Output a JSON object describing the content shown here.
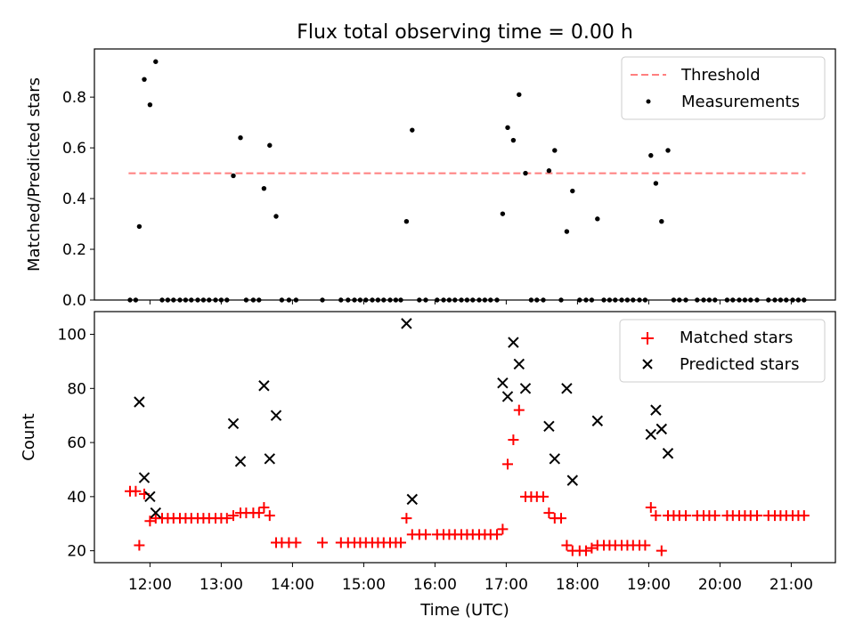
{
  "title": "Flux total observing time = 0.00 h",
  "colors": {
    "threshold": "#ff7f7f",
    "measurement": "#000000",
    "matched": "#ff0000",
    "predicted": "#000000"
  },
  "chart_data": [
    {
      "type": "scatter",
      "ylabel": "Matched/Predicted stars",
      "xlim": [
        11.22,
        21.62
      ],
      "ylim": [
        0,
        0.99
      ],
      "yticks": [
        0.0,
        0.2,
        0.4,
        0.6,
        0.8
      ],
      "ytick_labels": [
        "0.0",
        "0.2",
        "0.4",
        "0.6",
        "0.8"
      ],
      "legend": {
        "position": "upper right",
        "entries": [
          "Threshold",
          "Measurements"
        ]
      },
      "threshold": {
        "name": "Threshold",
        "y": 0.5,
        "x": [
          11.7,
          21.2
        ]
      },
      "series": [
        {
          "name": "Measurements",
          "marker": "dot",
          "points": [
            [
              11.72,
              0
            ],
            [
              11.8,
              0
            ],
            [
              11.85,
              0.29
            ],
            [
              11.92,
              0.87
            ],
            [
              12.0,
              0.77
            ],
            [
              12.08,
              0.94
            ],
            [
              12.17,
              0
            ],
            [
              12.25,
              0
            ],
            [
              12.33,
              0
            ],
            [
              12.42,
              0
            ],
            [
              12.5,
              0
            ],
            [
              12.58,
              0
            ],
            [
              12.67,
              0
            ],
            [
              12.75,
              0
            ],
            [
              12.83,
              0
            ],
            [
              12.92,
              0
            ],
            [
              13.0,
              0
            ],
            [
              13.08,
              0
            ],
            [
              13.17,
              0.49
            ],
            [
              13.27,
              0.64
            ],
            [
              13.35,
              0
            ],
            [
              13.45,
              0
            ],
            [
              13.53,
              0
            ],
            [
              13.6,
              0.44
            ],
            [
              13.68,
              0.61
            ],
            [
              13.77,
              0.33
            ],
            [
              13.85,
              0
            ],
            [
              13.95,
              0
            ],
            [
              14.05,
              0
            ],
            [
              14.42,
              0
            ],
            [
              14.68,
              0
            ],
            [
              14.78,
              0
            ],
            [
              14.87,
              0
            ],
            [
              14.95,
              0
            ],
            [
              15.03,
              0
            ],
            [
              15.12,
              0
            ],
            [
              15.2,
              0
            ],
            [
              15.28,
              0
            ],
            [
              15.37,
              0
            ],
            [
              15.45,
              0
            ],
            [
              15.52,
              0
            ],
            [
              15.6,
              0.31
            ],
            [
              15.68,
              0.67
            ],
            [
              15.78,
              0
            ],
            [
              15.87,
              0
            ],
            [
              16.03,
              0
            ],
            [
              16.12,
              0
            ],
            [
              16.2,
              0
            ],
            [
              16.28,
              0
            ],
            [
              16.37,
              0
            ],
            [
              16.45,
              0
            ],
            [
              16.53,
              0
            ],
            [
              16.62,
              0
            ],
            [
              16.7,
              0
            ],
            [
              16.78,
              0
            ],
            [
              16.87,
              0
            ],
            [
              16.95,
              0.34
            ],
            [
              17.02,
              0.68
            ],
            [
              17.1,
              0.63
            ],
            [
              17.18,
              0.81
            ],
            [
              17.27,
              0.5
            ],
            [
              17.35,
              0
            ],
            [
              17.43,
              0
            ],
            [
              17.52,
              0
            ],
            [
              17.6,
              0.51
            ],
            [
              17.68,
              0.59
            ],
            [
              17.77,
              0
            ],
            [
              17.85,
              0.27
            ],
            [
              17.93,
              0.43
            ],
            [
              18.03,
              0
            ],
            [
              18.12,
              0
            ],
            [
              18.2,
              0
            ],
            [
              18.28,
              0.32
            ],
            [
              18.37,
              0
            ],
            [
              18.45,
              0
            ],
            [
              18.53,
              0
            ],
            [
              18.62,
              0
            ],
            [
              18.7,
              0
            ],
            [
              18.78,
              0
            ],
            [
              18.87,
              0
            ],
            [
              18.95,
              0
            ],
            [
              19.03,
              0.57
            ],
            [
              19.1,
              0.46
            ],
            [
              19.18,
              0.31
            ],
            [
              19.27,
              0.59
            ],
            [
              19.35,
              0
            ],
            [
              19.43,
              0
            ],
            [
              19.52,
              0
            ],
            [
              19.68,
              0
            ],
            [
              19.77,
              0
            ],
            [
              19.85,
              0
            ],
            [
              19.93,
              0
            ],
            [
              20.1,
              0
            ],
            [
              20.18,
              0
            ],
            [
              20.27,
              0
            ],
            [
              20.35,
              0
            ],
            [
              20.43,
              0
            ],
            [
              20.52,
              0
            ],
            [
              20.68,
              0
            ],
            [
              20.77,
              0
            ],
            [
              20.85,
              0
            ],
            [
              20.93,
              0
            ],
            [
              21.02,
              0
            ],
            [
              21.1,
              0
            ],
            [
              21.18,
              0
            ]
          ]
        }
      ]
    },
    {
      "type": "scatter",
      "xlabel": "Time (UTC)",
      "ylabel": "Count",
      "xlim": [
        11.22,
        21.62
      ],
      "ylim": [
        15.6,
        108.4
      ],
      "xticks": [
        12,
        13,
        14,
        15,
        16,
        17,
        18,
        19,
        20,
        21
      ],
      "xtick_labels": [
        "12:00",
        "13:00",
        "14:00",
        "15:00",
        "16:00",
        "17:00",
        "18:00",
        "19:00",
        "20:00",
        "21:00"
      ],
      "yticks": [
        20,
        40,
        60,
        80,
        100
      ],
      "ytick_labels": [
        "20",
        "40",
        "60",
        "80",
        "100"
      ],
      "legend": {
        "position": "upper right",
        "entries": [
          "Matched stars",
          "Predicted stars"
        ]
      },
      "series": [
        {
          "name": "Matched stars",
          "marker": "plus",
          "points": [
            [
              11.72,
              42
            ],
            [
              11.8,
              42
            ],
            [
              11.85,
              22
            ],
            [
              11.92,
              41
            ],
            [
              12.0,
              31
            ],
            [
              12.08,
              32
            ],
            [
              12.17,
              32
            ],
            [
              12.25,
              32
            ],
            [
              12.33,
              32
            ],
            [
              12.42,
              32
            ],
            [
              12.5,
              32
            ],
            [
              12.58,
              32
            ],
            [
              12.67,
              32
            ],
            [
              12.75,
              32
            ],
            [
              12.83,
              32
            ],
            [
              12.92,
              32
            ],
            [
              13.0,
              32
            ],
            [
              13.08,
              32
            ],
            [
              13.17,
              33
            ],
            [
              13.27,
              34
            ],
            [
              13.35,
              34
            ],
            [
              13.45,
              34
            ],
            [
              13.53,
              34
            ],
            [
              13.6,
              36
            ],
            [
              13.68,
              33
            ],
            [
              13.77,
              23
            ],
            [
              13.85,
              23
            ],
            [
              13.95,
              23
            ],
            [
              14.05,
              23
            ],
            [
              14.42,
              23
            ],
            [
              14.68,
              23
            ],
            [
              14.78,
              23
            ],
            [
              14.87,
              23
            ],
            [
              14.95,
              23
            ],
            [
              15.03,
              23
            ],
            [
              15.12,
              23
            ],
            [
              15.2,
              23
            ],
            [
              15.28,
              23
            ],
            [
              15.37,
              23
            ],
            [
              15.45,
              23
            ],
            [
              15.52,
              23
            ],
            [
              15.6,
              32
            ],
            [
              15.68,
              26
            ],
            [
              15.78,
              26
            ],
            [
              15.87,
              26
            ],
            [
              16.03,
              26
            ],
            [
              16.12,
              26
            ],
            [
              16.2,
              26
            ],
            [
              16.28,
              26
            ],
            [
              16.37,
              26
            ],
            [
              16.45,
              26
            ],
            [
              16.53,
              26
            ],
            [
              16.62,
              26
            ],
            [
              16.7,
              26
            ],
            [
              16.78,
              26
            ],
            [
              16.87,
              26
            ],
            [
              16.95,
              28
            ],
            [
              17.02,
              52
            ],
            [
              17.1,
              61
            ],
            [
              17.18,
              72
            ],
            [
              17.27,
              40
            ],
            [
              17.35,
              40
            ],
            [
              17.43,
              40
            ],
            [
              17.52,
              40
            ],
            [
              17.6,
              34
            ],
            [
              17.68,
              32
            ],
            [
              17.77,
              32
            ],
            [
              17.85,
              22
            ],
            [
              17.93,
              20
            ],
            [
              18.03,
              20
            ],
            [
              18.12,
              20
            ],
            [
              18.2,
              21
            ],
            [
              18.28,
              22
            ],
            [
              18.37,
              22
            ],
            [
              18.45,
              22
            ],
            [
              18.53,
              22
            ],
            [
              18.62,
              22
            ],
            [
              18.7,
              22
            ],
            [
              18.78,
              22
            ],
            [
              18.87,
              22
            ],
            [
              18.95,
              22
            ],
            [
              19.03,
              36
            ],
            [
              19.1,
              33
            ],
            [
              19.18,
              20
            ],
            [
              19.27,
              33
            ],
            [
              19.35,
              33
            ],
            [
              19.43,
              33
            ],
            [
              19.52,
              33
            ],
            [
              19.68,
              33
            ],
            [
              19.77,
              33
            ],
            [
              19.85,
              33
            ],
            [
              19.93,
              33
            ],
            [
              20.1,
              33
            ],
            [
              20.18,
              33
            ],
            [
              20.27,
              33
            ],
            [
              20.35,
              33
            ],
            [
              20.43,
              33
            ],
            [
              20.52,
              33
            ],
            [
              20.68,
              33
            ],
            [
              20.77,
              33
            ],
            [
              20.85,
              33
            ],
            [
              20.93,
              33
            ],
            [
              21.02,
              33
            ],
            [
              21.1,
              33
            ],
            [
              21.18,
              33
            ]
          ]
        },
        {
          "name": "Predicted stars",
          "marker": "x",
          "points": [
            [
              11.85,
              75
            ],
            [
              11.92,
              47
            ],
            [
              12.0,
              40
            ],
            [
              12.08,
              34
            ],
            [
              13.17,
              67
            ],
            [
              13.27,
              53
            ],
            [
              13.6,
              81
            ],
            [
              13.68,
              54
            ],
            [
              13.77,
              70
            ],
            [
              15.6,
              104
            ],
            [
              15.68,
              39
            ],
            [
              16.95,
              82
            ],
            [
              17.02,
              77
            ],
            [
              17.1,
              97
            ],
            [
              17.18,
              89
            ],
            [
              17.27,
              80
            ],
            [
              17.6,
              66
            ],
            [
              17.68,
              54
            ],
            [
              17.85,
              80
            ],
            [
              17.93,
              46
            ],
            [
              18.28,
              68
            ],
            [
              19.03,
              63
            ],
            [
              19.1,
              72
            ],
            [
              19.18,
              65
            ],
            [
              19.27,
              56
            ]
          ]
        }
      ]
    }
  ]
}
